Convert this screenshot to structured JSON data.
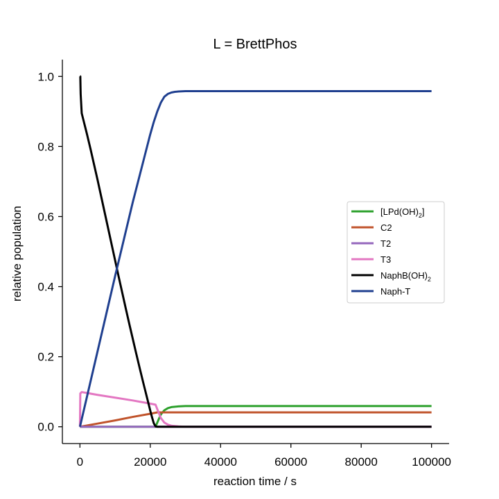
{
  "chart_data": {
    "type": "line",
    "title": "L = BrettPhos",
    "xlabel": "reaction time / s",
    "ylabel": "relative population",
    "xlim": [
      -5000,
      105000
    ],
    "ylim": [
      -0.048,
      1.048
    ],
    "xticks": [
      0,
      20000,
      40000,
      60000,
      80000,
      100000
    ],
    "xtick_labels": [
      "0",
      "20000",
      "40000",
      "60000",
      "80000",
      "100000"
    ],
    "yticks": [
      0.0,
      0.2,
      0.4,
      0.6,
      0.8,
      1.0
    ],
    "ytick_labels": [
      "0.0",
      "0.2",
      "0.4",
      "0.6",
      "0.8",
      "1.0"
    ],
    "grid": false,
    "legend_position": "center-right",
    "series": [
      {
        "name": "[LPd(OH)2]",
        "name_parts": {
          "base": "[LPd(OH)",
          "sub": "2",
          "after": "]"
        },
        "color": "#2ca02c",
        "x": [
          0,
          21500,
          22000,
          23000,
          24000,
          25000,
          26000,
          28000,
          30000,
          35000,
          100000
        ],
        "y": [
          0,
          0,
          0.012,
          0.035,
          0.047,
          0.053,
          0.056,
          0.058,
          0.059,
          0.059,
          0.059
        ]
      },
      {
        "name": "C2",
        "name_parts": {
          "base": "C2",
          "sub": "",
          "after": ""
        },
        "color": "#c0532b",
        "x": [
          0,
          5000,
          10000,
          15000,
          20000,
          21500,
          22000,
          100000
        ],
        "y": [
          0,
          0.009,
          0.018,
          0.028,
          0.037,
          0.04,
          0.041,
          0.041
        ]
      },
      {
        "name": "T2",
        "name_parts": {
          "base": "T2",
          "sub": "",
          "after": ""
        },
        "color": "#9467bd",
        "x": [
          0,
          100000
        ],
        "y": [
          0,
          0
        ]
      },
      {
        "name": "T3",
        "name_parts": {
          "base": "T3",
          "sub": "",
          "after": ""
        },
        "color": "#e377c2",
        "x": [
          0,
          100,
          500,
          5000,
          10000,
          15000,
          20000,
          21500,
          22000,
          23000,
          24000,
          25000,
          26000,
          28000,
          30000,
          100000
        ],
        "y": [
          0,
          0.095,
          0.099,
          0.091,
          0.083,
          0.075,
          0.066,
          0.063,
          0.05,
          0.025,
          0.012,
          0.006,
          0.003,
          0.001,
          0,
          0
        ]
      },
      {
        "name": "NaphB(OH)2",
        "name_parts": {
          "base": "NaphB(OH)",
          "sub": "2",
          "after": ""
        },
        "color": "#000000",
        "x": [
          0,
          100,
          200,
          500,
          1000,
          2000,
          3000,
          4000,
          5000,
          6000,
          7000,
          8000,
          9000,
          10000,
          11000,
          12000,
          13000,
          14000,
          15000,
          16000,
          17000,
          18000,
          19000,
          20000,
          20500,
          21000,
          21500,
          22000,
          100000
        ],
        "y": [
          1.0,
          1.0,
          0.95,
          0.895,
          0.875,
          0.835,
          0.793,
          0.749,
          0.705,
          0.659,
          0.613,
          0.567,
          0.521,
          0.475,
          0.429,
          0.384,
          0.339,
          0.295,
          0.252,
          0.209,
          0.167,
          0.126,
          0.086,
          0.046,
          0.027,
          0.01,
          0.001,
          0,
          0
        ]
      },
      {
        "name": "Naph-T",
        "name_parts": {
          "base": "Naph-T",
          "sub": "",
          "after": ""
        },
        "color": "#1f3f8f",
        "x": [
          0,
          5000,
          10000,
          15000,
          20000,
          21000,
          22000,
          23000,
          24000,
          25000,
          26000,
          27000,
          28000,
          30000,
          35000,
          40000,
          100000
        ],
        "y": [
          0,
          0.215,
          0.43,
          0.64,
          0.835,
          0.87,
          0.9,
          0.925,
          0.942,
          0.95,
          0.954,
          0.956,
          0.957,
          0.958,
          0.958,
          0.958,
          0.958
        ]
      }
    ]
  }
}
